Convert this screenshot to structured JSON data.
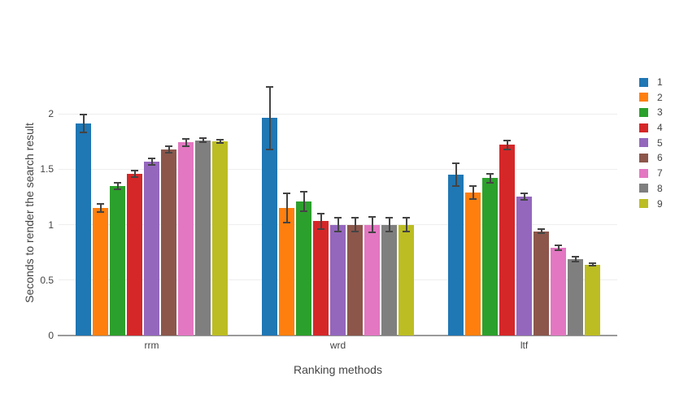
{
  "figure": {
    "background": "#ffffff",
    "text_color": "#444444",
    "grid_color": "#eeeeee",
    "axis_line_color": "#9a9a9a",
    "error_bar_color": "#444444"
  },
  "chart_data": {
    "type": "bar",
    "bar_mode": "grouped",
    "title": "",
    "xlabel": "Ranking methods",
    "ylabel": "Seconds to render the search result",
    "categories": [
      "rrm",
      "wrd",
      "ltf"
    ],
    "y_tick_labels": [
      "0",
      "0.5",
      "1",
      "1.5",
      "2"
    ],
    "y_tick_values": [
      0,
      0.5,
      1,
      1.5,
      2
    ],
    "ylim": [
      0,
      2.3
    ],
    "grid": true,
    "error_bars": true,
    "legend_position": "right",
    "series": [
      {
        "name": "1",
        "color": "#1f77b4",
        "values": [
          1.91,
          1.96,
          1.45
        ],
        "errors": [
          0.08,
          0.28,
          0.1
        ]
      },
      {
        "name": "2",
        "color": "#ff7f0e",
        "values": [
          1.15,
          1.15,
          1.29
        ],
        "errors": [
          0.04,
          0.13,
          0.06
        ]
      },
      {
        "name": "3",
        "color": "#2ca02c",
        "values": [
          1.35,
          1.21,
          1.42
        ],
        "errors": [
          0.03,
          0.09,
          0.04
        ]
      },
      {
        "name": "4",
        "color": "#d62728",
        "values": [
          1.46,
          1.03,
          1.72
        ],
        "errors": [
          0.03,
          0.07,
          0.04
        ]
      },
      {
        "name": "5",
        "color": "#9467bd",
        "values": [
          1.57,
          1.0,
          1.25
        ],
        "errors": [
          0.03,
          0.06,
          0.03
        ]
      },
      {
        "name": "6",
        "color": "#8c564b",
        "values": [
          1.68,
          1.0,
          0.94
        ],
        "errors": [
          0.03,
          0.06,
          0.02
        ]
      },
      {
        "name": "7",
        "color": "#e377c2",
        "values": [
          1.74,
          1.0,
          0.79
        ],
        "errors": [
          0.03,
          0.07,
          0.02
        ]
      },
      {
        "name": "8",
        "color": "#7f7f7f",
        "values": [
          1.76,
          1.0,
          0.69
        ],
        "errors": [
          0.02,
          0.06,
          0.02
        ]
      },
      {
        "name": "9",
        "color": "#bcbd22",
        "values": [
          1.75,
          1.0,
          0.64
        ],
        "errors": [
          0.015,
          0.06,
          0.01
        ]
      }
    ]
  }
}
